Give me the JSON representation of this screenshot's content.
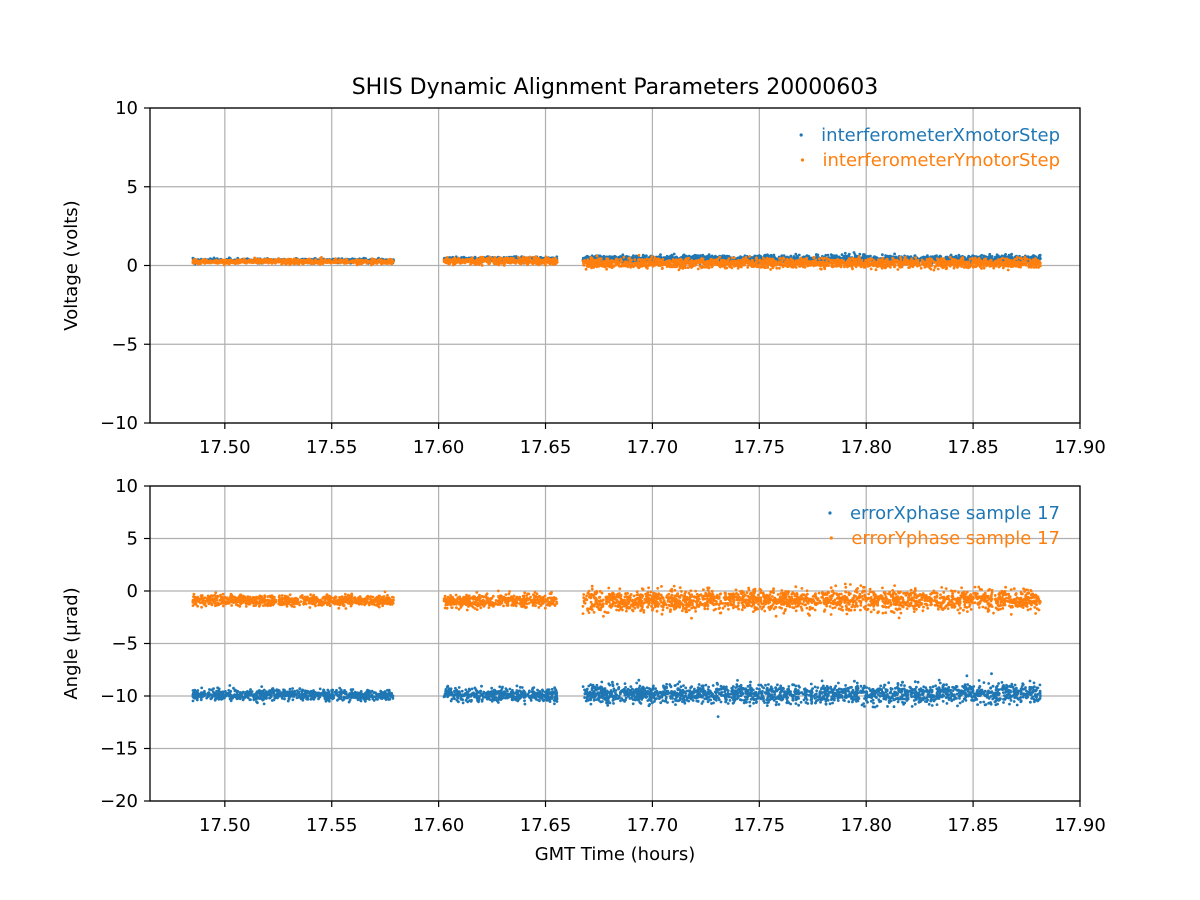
{
  "figure_title": "SHIS Dynamic Alignment Parameters 20000603",
  "chart_data": [
    {
      "type": "scatter",
      "title": "SHIS Dynamic Alignment Parameters 20000603",
      "xlabel": "",
      "ylabel": "Voltage (volts)",
      "xlim": [
        17.465,
        17.9
      ],
      "ylim": [
        -10,
        10
      ],
      "xticks": [
        17.5,
        17.55,
        17.6,
        17.65,
        17.7,
        17.75,
        17.8,
        17.85,
        17.9
      ],
      "xtick_labels": [
        "17.50",
        "17.55",
        "17.60",
        "17.65",
        "17.70",
        "17.75",
        "17.80",
        "17.85",
        "17.90"
      ],
      "yticks": [
        -10,
        -5,
        0,
        5,
        10
      ],
      "ytick_labels": [
        "−10",
        "−5",
        "0",
        "5",
        "10"
      ],
      "grid": true,
      "legend_position": "top-right",
      "x_segments": [
        [
          17.485,
          17.579
        ],
        [
          17.6025,
          17.6555
        ],
        [
          17.6675,
          17.8815
        ]
      ],
      "series": [
        {
          "name": "interferometerXmotorStep",
          "color": "#1f77b4",
          "segments": [
            {
              "x_range": [
                17.485,
                17.579
              ],
              "y_mean": 0.3,
              "y_spread": 0.06
            },
            {
              "x_range": [
                17.6025,
                17.6555
              ],
              "y_mean": 0.38,
              "y_spread": 0.08
            },
            {
              "x_range": [
                17.6675,
                17.8815
              ],
              "y_mean": 0.4,
              "y_spread": 0.12
            }
          ]
        },
        {
          "name": "interferometerYmotorStep",
          "color": "#ff7f0e",
          "segments": [
            {
              "x_range": [
                17.485,
                17.579
              ],
              "y_mean": 0.25,
              "y_spread": 0.07
            },
            {
              "x_range": [
                17.6025,
                17.6555
              ],
              "y_mean": 0.28,
              "y_spread": 0.1
            },
            {
              "x_range": [
                17.6675,
                17.8815
              ],
              "y_mean": 0.15,
              "y_spread": 0.15
            }
          ]
        }
      ]
    },
    {
      "type": "scatter",
      "title": "",
      "xlabel": "GMT Time (hours)",
      "ylabel": "Angle (μrad)",
      "xlim": [
        17.465,
        17.9
      ],
      "ylim": [
        -20,
        10
      ],
      "xticks": [
        17.5,
        17.55,
        17.6,
        17.65,
        17.7,
        17.75,
        17.8,
        17.85,
        17.9
      ],
      "xtick_labels": [
        "17.50",
        "17.55",
        "17.60",
        "17.65",
        "17.70",
        "17.75",
        "17.80",
        "17.85",
        "17.90"
      ],
      "yticks": [
        -20,
        -15,
        -10,
        -5,
        0,
        5,
        10
      ],
      "ytick_labels": [
        "−20",
        "−15",
        "−10",
        "−5",
        "0",
        "5",
        "10"
      ],
      "grid": true,
      "legend_position": "top-right",
      "x_segments": [
        [
          17.485,
          17.579
        ],
        [
          17.6025,
          17.6555
        ],
        [
          17.6675,
          17.8815
        ]
      ],
      "series": [
        {
          "name": "errorXphase sample 17",
          "color": "#1f77b4",
          "segments": [
            {
              "x_range": [
                17.485,
                17.579
              ],
              "y_mean": -9.9,
              "y_spread": 0.25
            },
            {
              "x_range": [
                17.6025,
                17.6555
              ],
              "y_mean": -9.9,
              "y_spread": 0.3
            },
            {
              "x_range": [
                17.6675,
                17.8815
              ],
              "y_mean": -9.8,
              "y_spread": 0.45
            }
          ]
        },
        {
          "name": "errorYphase sample 17",
          "color": "#ff7f0e",
          "segments": [
            {
              "x_range": [
                17.485,
                17.579
              ],
              "y_mean": -0.9,
              "y_spread": 0.25
            },
            {
              "x_range": [
                17.6025,
                17.6555
              ],
              "y_mean": -0.95,
              "y_spread": 0.3
            },
            {
              "x_range": [
                17.6675,
                17.8815
              ],
              "y_mean": -0.9,
              "y_spread": 0.5
            }
          ]
        }
      ]
    }
  ]
}
